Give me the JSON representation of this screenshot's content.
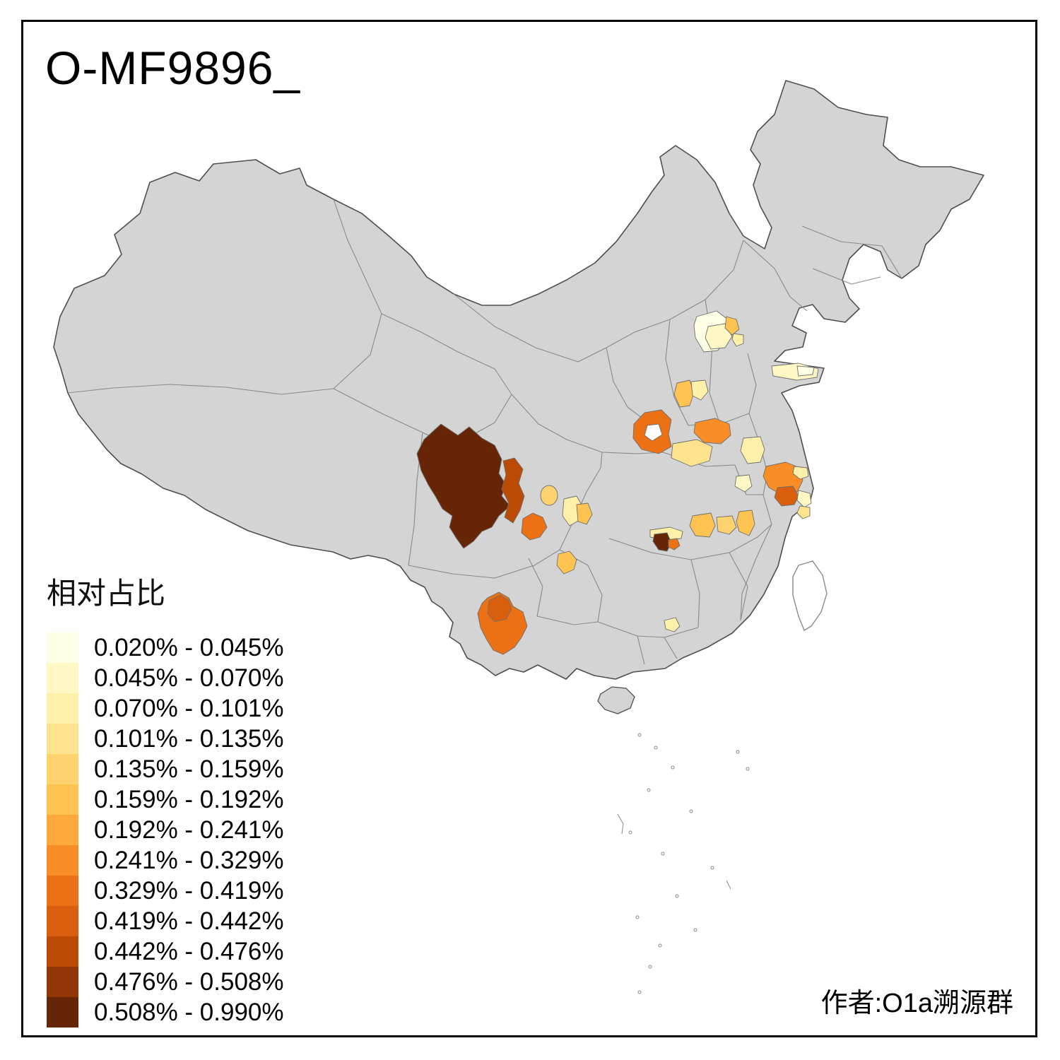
{
  "title": "O-MF9896_",
  "author": "作者:O1a溯源群",
  "legend": {
    "title": "相对占比",
    "bins": [
      {
        "label": "0.020% - 0.045%",
        "color": "#FFFFE5"
      },
      {
        "label": "0.045% - 0.070%",
        "color": "#FFF8C5"
      },
      {
        "label": "0.070% - 0.101%",
        "color": "#FEF0A8"
      },
      {
        "label": "0.101% - 0.135%",
        "color": "#FEE38E"
      },
      {
        "label": "0.135% - 0.159%",
        "color": "#FED36F"
      },
      {
        "label": "0.159% - 0.192%",
        "color": "#FEC350"
      },
      {
        "label": "0.192% - 0.241%",
        "color": "#FEA93B"
      },
      {
        "label": "0.241% - 0.329%",
        "color": "#F98E27"
      },
      {
        "label": "0.329% - 0.419%",
        "color": "#EC7014"
      },
      {
        "label": "0.419% - 0.442%",
        "color": "#D95F0E"
      },
      {
        "label": "0.442% - 0.476%",
        "color": "#BB4A04"
      },
      {
        "label": "0.476% - 0.508%",
        "color": "#933606"
      },
      {
        "label": "0.508% - 0.990%",
        "color": "#662506"
      }
    ]
  },
  "map": {
    "land_color": "#D4D4D4",
    "country_border_color": "#4F4F4F",
    "province_border_color": "#8A8A8A",
    "frame_color": "#000000",
    "background": "#FFFFFF",
    "taiwan_fill": "#FFFFFF",
    "ring_hole_color": "#FFFFFF"
  }
}
